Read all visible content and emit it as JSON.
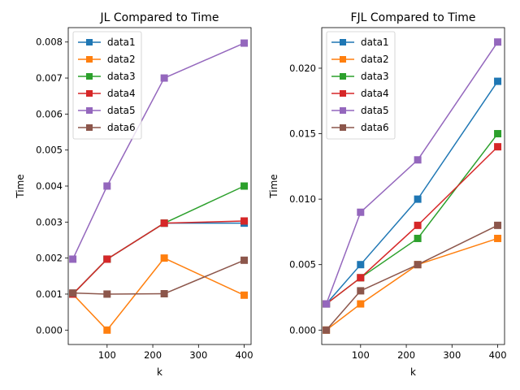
{
  "chart_data": [
    {
      "type": "line",
      "title": "JL Compared to Time",
      "xlabel": "k",
      "ylabel": "Time",
      "x": [
        25,
        100,
        225,
        400
      ],
      "xlim": [
        15,
        415
      ],
      "ylim": [
        -0.0004,
        0.0084
      ],
      "xticks": [
        100,
        200,
        300,
        400
      ],
      "yticks": [
        0.0,
        0.001,
        0.002,
        0.003,
        0.004,
        0.005,
        0.006,
        0.007,
        0.008
      ],
      "ytick_labels": [
        "0.000",
        "0.001",
        "0.002",
        "0.003",
        "0.004",
        "0.005",
        "0.006",
        "0.007",
        "0.008"
      ],
      "legend_position": "top-left",
      "grid": false,
      "series": [
        {
          "name": "data1",
          "color": "#1f77b4",
          "values": [
            0.001,
            0.00197,
            0.00297,
            0.00297
          ]
        },
        {
          "name": "data2",
          "color": "#ff7f0e",
          "values": [
            0.001,
            0.0,
            0.002,
            0.00097
          ]
        },
        {
          "name": "data3",
          "color": "#2ca02c",
          "values": [
            0.001,
            0.00197,
            0.00297,
            0.004
          ]
        },
        {
          "name": "data4",
          "color": "#d62728",
          "values": [
            0.001,
            0.00197,
            0.00297,
            0.00303
          ]
        },
        {
          "name": "data5",
          "color": "#9467bd",
          "values": [
            0.00197,
            0.004,
            0.007,
            0.00797
          ]
        },
        {
          "name": "data6",
          "color": "#8c564b",
          "values": [
            0.00103,
            0.001,
            0.00101,
            0.00194
          ]
        }
      ]
    },
    {
      "type": "line",
      "title": "FJL Compared to Time",
      "xlabel": "k",
      "ylabel": "Time",
      "x": [
        25,
        100,
        225,
        400
      ],
      "xlim": [
        15,
        415
      ],
      "ylim": [
        -0.0011,
        0.0231
      ],
      "xticks": [
        100,
        200,
        300,
        400
      ],
      "yticks": [
        0.0,
        0.005,
        0.01,
        0.015,
        0.02
      ],
      "ytick_labels": [
        "0.000",
        "0.005",
        "0.010",
        "0.015",
        "0.020"
      ],
      "legend_position": "top-left",
      "grid": false,
      "series": [
        {
          "name": "data1",
          "color": "#1f77b4",
          "values": [
            0.002,
            0.005,
            0.01,
            0.019
          ]
        },
        {
          "name": "data2",
          "color": "#ff7f0e",
          "values": [
            0.0,
            0.002,
            0.005,
            0.007
          ]
        },
        {
          "name": "data3",
          "color": "#2ca02c",
          "values": [
            0.002,
            0.004,
            0.007,
            0.015
          ]
        },
        {
          "name": "data4",
          "color": "#d62728",
          "values": [
            0.002,
            0.004,
            0.008,
            0.014
          ]
        },
        {
          "name": "data5",
          "color": "#9467bd",
          "values": [
            0.002,
            0.009,
            0.013,
            0.022
          ]
        },
        {
          "name": "data6",
          "color": "#8c564b",
          "values": [
            0.0,
            0.003,
            0.005,
            0.008
          ]
        }
      ]
    }
  ]
}
